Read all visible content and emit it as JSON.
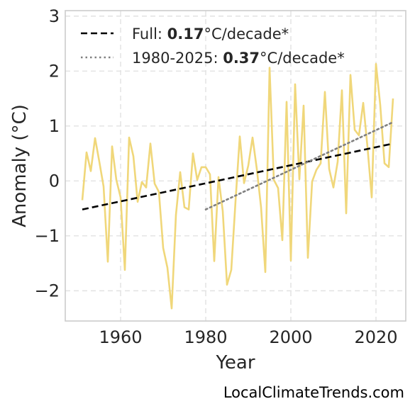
{
  "chart_data": {
    "type": "line",
    "xlabel": "Year",
    "ylabel": "Anomaly (°C)",
    "xlim": [
      1947,
      2027
    ],
    "ylim": [
      -2.55,
      3.1
    ],
    "xticks": [
      1960,
      1980,
      2000,
      2020
    ],
    "yticks": [
      -2,
      -1,
      0,
      1,
      2,
      3
    ],
    "ytick_labels": [
      "−2",
      "−1",
      "0",
      "1",
      "2",
      "3"
    ],
    "grid": true,
    "legend_position": "top-left",
    "series": [
      {
        "style": "line",
        "color": "#f0d77a",
        "x": [
          1951,
          1952,
          1953,
          1954,
          1955,
          1956,
          1957,
          1958,
          1959,
          1960,
          1961,
          1962,
          1963,
          1964,
          1965,
          1966,
          1967,
          1968,
          1969,
          1970,
          1971,
          1972,
          1973,
          1974,
          1975,
          1976,
          1977,
          1978,
          1979,
          1980,
          1981,
          1982,
          1983,
          1984,
          1985,
          1986,
          1987,
          1988,
          1989,
          1990,
          1991,
          1992,
          1993,
          1994,
          1995,
          1996,
          1997,
          1998,
          1999,
          2000,
          2001,
          2002,
          2003,
          2004,
          2005,
          2006,
          2007,
          2008,
          2009,
          2010,
          2011,
          2012,
          2013,
          2014,
          2015,
          2016,
          2017,
          2018,
          2019,
          2020,
          2021,
          2022,
          2023,
          2024
        ],
        "values": [
          -0.35,
          0.52,
          0.18,
          0.78,
          0.35,
          -0.1,
          -1.47,
          0.63,
          0.02,
          -0.3,
          -1.62,
          0.79,
          0.45,
          -0.38,
          -0.02,
          -0.12,
          0.68,
          -0.05,
          -0.2,
          -1.22,
          -1.58,
          -2.32,
          -0.62,
          0.16,
          -0.48,
          -0.52,
          0.5,
          0.02,
          0.25,
          0.25,
          0.12,
          -1.46,
          0.07,
          -0.55,
          -1.89,
          -1.62,
          -0.37,
          0.81,
          -0.04,
          0.28,
          0.79,
          0.22,
          -0.48,
          -1.66,
          2.06,
          0.02,
          -0.13,
          -1.08,
          1.44,
          -1.45,
          1.76,
          0.03,
          1.37,
          -1.4,
          -0.01,
          0.2,
          0.32,
          1.62,
          0.22,
          -0.12,
          0.35,
          1.65,
          -0.59,
          1.93,
          0.93,
          0.83,
          1.42,
          0.62,
          -0.3,
          2.13,
          1.38,
          0.32,
          0.25,
          1.5
        ]
      },
      {
        "name": "Full",
        "style": "dashed",
        "color": "#000000",
        "x": [
          1951,
          2024
        ],
        "values": [
          -0.52,
          0.68
        ]
      },
      {
        "name": "1980-2025",
        "style": "dotted",
        "color": "#808080",
        "x": [
          1980,
          2024
        ],
        "values": [
          -0.52,
          1.07
        ]
      }
    ],
    "legend": [
      {
        "prefix": "Full: ",
        "value": "0.17",
        "suffix": "°C/decade*"
      },
      {
        "prefix": "1980-2025: ",
        "value": "0.37",
        "suffix": "°C/decade*"
      }
    ]
  },
  "credit": "LocalClimateTrends.com"
}
